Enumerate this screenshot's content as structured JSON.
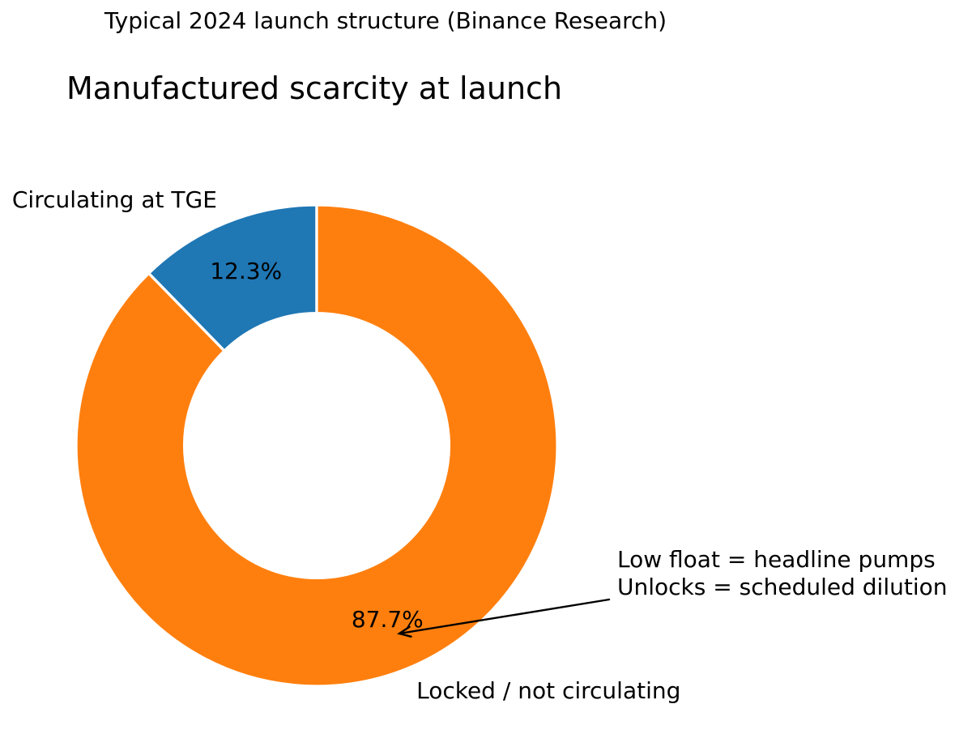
{
  "chart_data": {
    "type": "pie",
    "subtype": "donut",
    "suptitle": "Typical 2024 launch structure (Binance Research)",
    "title": "Manufactured scarcity at launch",
    "slices": [
      {
        "label": "Circulating at TGE",
        "value_pct": 12.3,
        "pct_label": "12.3%",
        "color": "#1f77b4"
      },
      {
        "label": "Locked / not circulating",
        "value_pct": 87.7,
        "pct_label": "87.7%",
        "color": "#ff7f0e"
      }
    ],
    "start_angle_deg": 90,
    "direction": "counterclockwise",
    "donut_hole_ratio": 0.55,
    "legend": "none",
    "annotation": {
      "lines": [
        "Low float = headline pumps",
        "Unlocks = scheduled dilution"
      ],
      "arrow": true,
      "arrow_target": "87.7% wedge"
    },
    "colors": {
      "background": "#ffffff",
      "text": "#000000",
      "wedge_edge": "#ffffff",
      "arrow": "#000000"
    }
  }
}
